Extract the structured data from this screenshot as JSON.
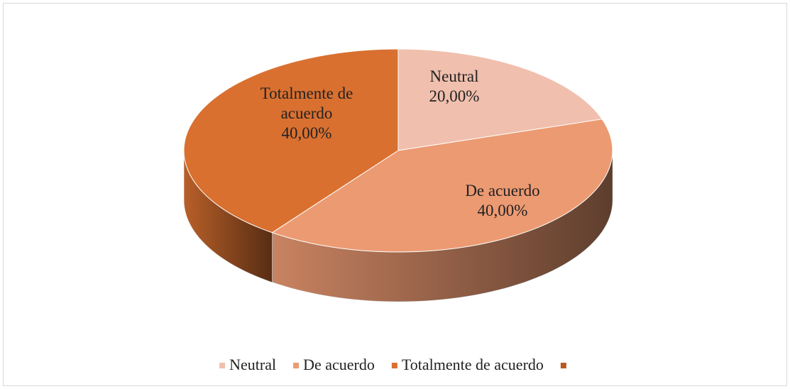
{
  "chart_data": {
    "type": "pie3d",
    "categories": [
      "Neutral",
      "De acuerdo",
      "Totalmente de acuerdo",
      null
    ],
    "values": [
      20,
      40,
      40,
      0
    ],
    "value_labels": [
      "20,00%",
      "40,00%",
      "40,00%",
      null
    ],
    "colors": [
      "#f0bfad",
      "#ec9a72",
      "#d97030",
      "#b85a22"
    ],
    "legend": "bottom"
  }
}
